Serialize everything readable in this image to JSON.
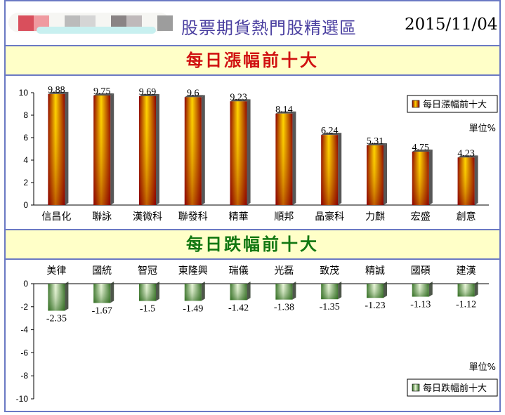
{
  "header": {
    "site_title": "股票期貨熱門股精選區",
    "date": "2015/11/04"
  },
  "colors": {
    "border": "#6a79c4",
    "band_bg": "#ffffc8",
    "up_title": "#d01010",
    "down_title": "#117711",
    "up_bar_light": "#ffd400",
    "up_bar_dark": "#8b0000",
    "down_bar_light": "#e8f5d8",
    "down_bar_dark": "#2f6b1f"
  },
  "chart_data": [
    {
      "type": "bar",
      "title": "每日漲幅前十大",
      "legend": "每日漲幅前十大",
      "unit": "單位%",
      "categories": [
        "信昌化",
        "聯詠",
        "漢微科",
        "聯發科",
        "精華",
        "順邦",
        "晶豪科",
        "力麒",
        "宏盛",
        "創意"
      ],
      "values": [
        9.88,
        9.75,
        9.69,
        9.6,
        9.23,
        8.14,
        6.24,
        5.31,
        4.75,
        4.23
      ],
      "value_labels": [
        "9.88",
        "9.75",
        "9.69",
        "9.6",
        "9.23",
        "8.14",
        "6.24",
        "5.31",
        "4.75",
        "4.23"
      ],
      "yticks": [
        "0",
        "2",
        "4",
        "6",
        "8",
        "10"
      ],
      "ylim": [
        0,
        10
      ],
      "legend_position": "top-right"
    },
    {
      "type": "bar",
      "title": "每日跌幅前十大",
      "legend": "每日跌幅前十大",
      "unit": "單位%",
      "categories": [
        "美律",
        "國統",
        "智冠",
        "東隆興",
        "瑞儀",
        "光磊",
        "致茂",
        "精誠",
        "國碩",
        "建漢"
      ],
      "values": [
        -2.35,
        -1.67,
        -1.5,
        -1.49,
        -1.42,
        -1.38,
        -1.35,
        -1.23,
        -1.13,
        -1.12
      ],
      "value_labels": [
        "-2.35",
        "-1.67",
        "-1.5",
        "-1.49",
        "-1.42",
        "-1.38",
        "-1.35",
        "-1.23",
        "-1.13",
        "-1.12"
      ],
      "yticks": [
        "0",
        "-2",
        "-4",
        "-6",
        "-8",
        "-10"
      ],
      "ylim": [
        -10,
        0
      ],
      "legend_position": "bottom-right"
    }
  ]
}
